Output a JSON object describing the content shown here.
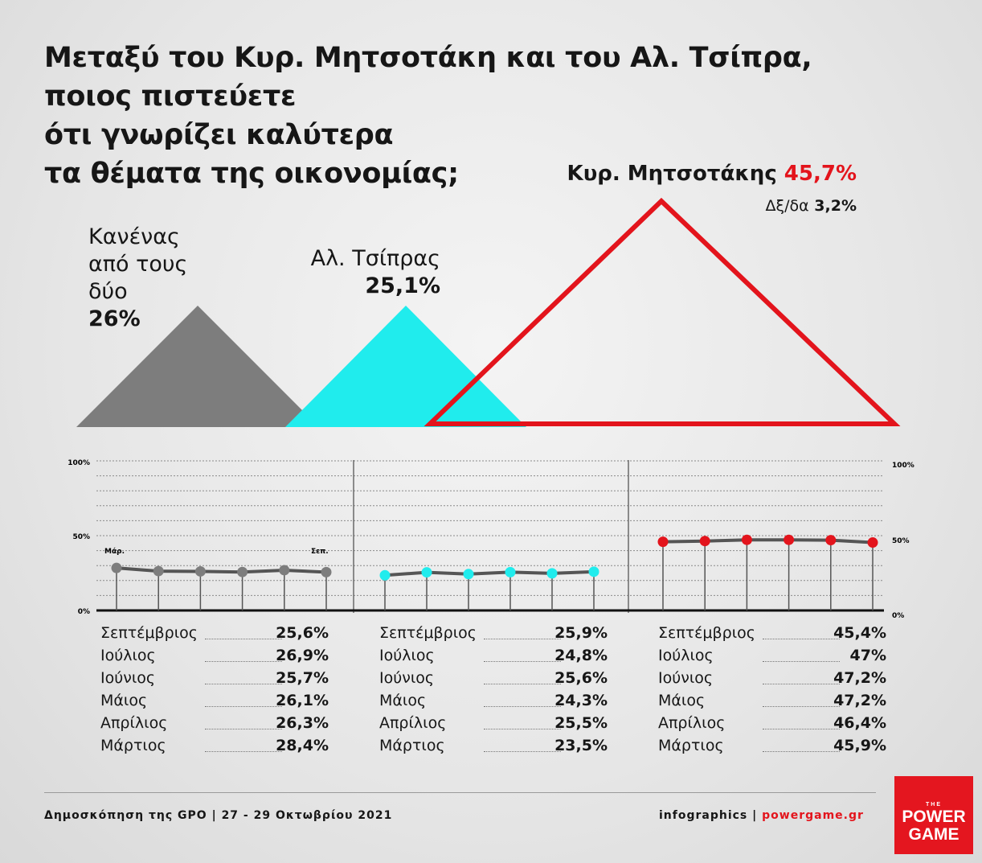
{
  "title_lines": [
    "Μεταξύ του Κυρ. Μητσοτάκη και του Αλ. Τσίπρα,",
    "ποιος πιστεύετε",
    "ότι γνωρίζει καλύτερα",
    "τα θέματα της οικονομίας;"
  ],
  "summary": {
    "none": {
      "l1": "Κανένας",
      "l2": "από τους",
      "l3": "δύο",
      "value": "26%"
    },
    "tsipras": {
      "name": "Αλ. Τσίπρας",
      "value": "25,1%"
    },
    "mitsotakis": {
      "name": "Κυρ. Μητσοτάκης",
      "value": "45,7%"
    },
    "dk": {
      "label": "Δξ/δα",
      "value": "3,2%"
    }
  },
  "colors": {
    "none": "#7d7d7d",
    "tsipras": "#20eced",
    "mitsotakis": "#e3141c",
    "text": "#161616"
  },
  "axis": {
    "y100": "100%",
    "y50": "50%",
    "y0": "0%",
    "start_label": "Μάρ.",
    "end_label": "Σεπ."
  },
  "chart_data": {
    "type": "line",
    "x": [
      "Μάρτιος",
      "Απρίλιος",
      "Μάιος",
      "Ιούνιος",
      "Ιούλιος",
      "Σεπτέμβριος"
    ],
    "ylim": [
      0,
      100
    ],
    "series": [
      {
        "name": "Κανένας από τους δύο",
        "values": [
          28.4,
          26.3,
          26.1,
          25.7,
          26.9,
          25.6
        ],
        "color": "#7d7d7d"
      },
      {
        "name": "Αλ. Τσίπρας",
        "values": [
          23.5,
          25.5,
          24.3,
          25.6,
          24.8,
          25.9
        ],
        "color": "#20eced"
      },
      {
        "name": "Κυρ. Μητσοτάκης",
        "values": [
          45.9,
          46.4,
          47.2,
          47.2,
          47,
          45.4
        ],
        "color": "#e3141c"
      }
    ],
    "summary_values": {
      "Κανένας από τους δύο": 26,
      "Αλ. Τσίπρας": 25.1,
      "Κυρ. Μητσοτάκης": 45.7,
      "Δξ/δα": 3.2
    }
  },
  "tables": [
    {
      "rows": [
        {
          "month": "Σεπτέμβριος",
          "value": "25,6%"
        },
        {
          "month": "Ιούλιος",
          "value": "26,9%"
        },
        {
          "month": "Ιούνιος",
          "value": "25,7%"
        },
        {
          "month": "Μάιος",
          "value": "26,1%"
        },
        {
          "month": "Απρίλιος",
          "value": "26,3%"
        },
        {
          "month": "Μάρτιος",
          "value": "28,4%"
        }
      ]
    },
    {
      "rows": [
        {
          "month": "Σεπτέμβριος",
          "value": "25,9%"
        },
        {
          "month": "Ιούλιος",
          "value": "24,8%"
        },
        {
          "month": "Ιούνιος",
          "value": "25,6%"
        },
        {
          "month": "Μάιος",
          "value": "24,3%"
        },
        {
          "month": "Απρίλιος",
          "value": "25,5%"
        },
        {
          "month": "Μάρτιος",
          "value": "23,5%"
        }
      ]
    },
    {
      "rows": [
        {
          "month": "Σεπτέμβριος",
          "value": "45,4%"
        },
        {
          "month": "Ιούλιος",
          "value": "47%"
        },
        {
          "month": "Ιούνιος",
          "value": "47,2%"
        },
        {
          "month": "Μάιος",
          "value": "47,2%"
        },
        {
          "month": "Απρίλιος",
          "value": "46,4%"
        },
        {
          "month": "Μάρτιος",
          "value": "45,9%"
        }
      ]
    }
  ],
  "footer": {
    "source": "Δημοσκόπηση της GPO | 27 - 29 Οκτωβρίου 2021",
    "credit": "infographics |",
    "site": "powergame.gr"
  },
  "logo": {
    "the": "THE",
    "line1": "POWER",
    "line2": "GAME"
  }
}
